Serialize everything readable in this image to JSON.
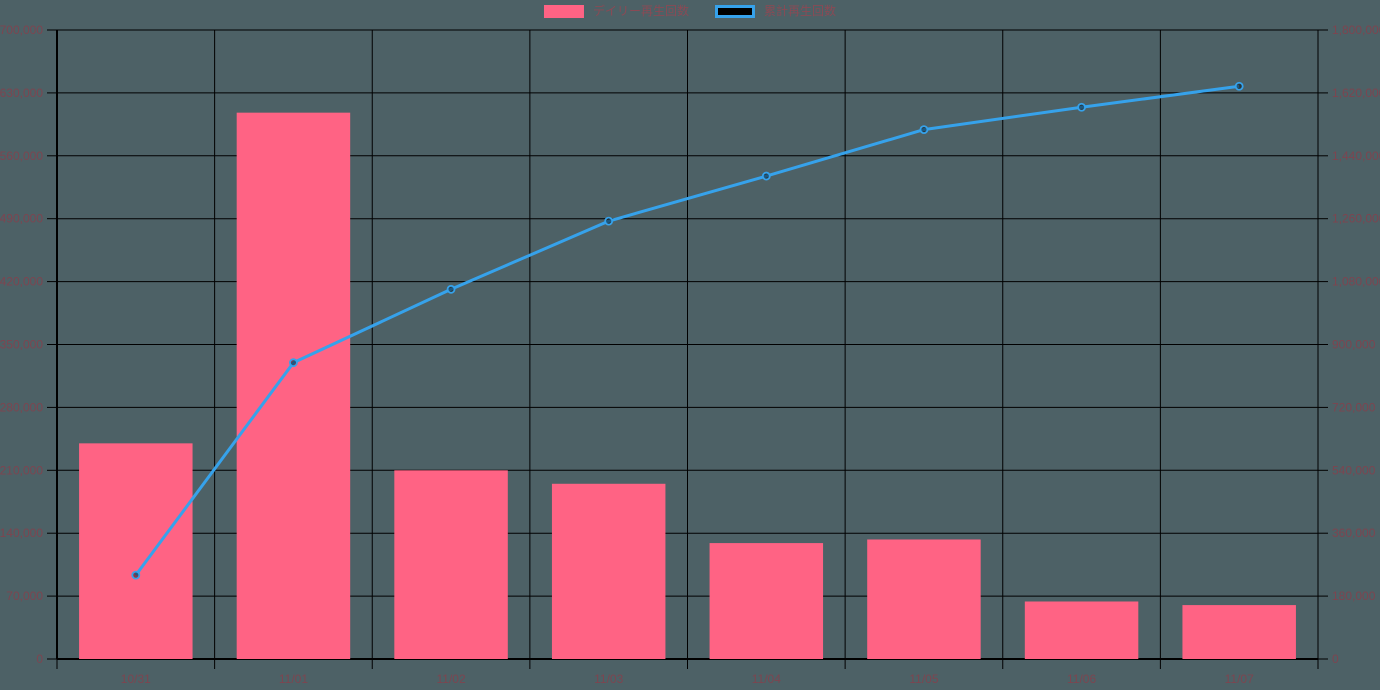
{
  "chart_data": {
    "type": "combo",
    "title": "",
    "categories": [
      "10/31",
      "11/01",
      "11/02",
      "11/03",
      "11/04",
      "11/05",
      "11/06",
      "11/07"
    ],
    "series": [
      {
        "name": "デイリー再生回数",
        "type": "bar",
        "axis": "left",
        "color": "#ff6384",
        "values": [
          240000,
          608000,
          210000,
          195000,
          129000,
          133000,
          64000,
          60000
        ]
      },
      {
        "name": "累計再生回数",
        "type": "line",
        "axis": "right",
        "color": "#36a2eb",
        "point_fill": "rgba(0,0,0,0.45)",
        "values": [
          240000,
          848000,
          1058000,
          1253000,
          1382000,
          1515000,
          1579000,
          1639000
        ]
      }
    ],
    "left_axis": {
      "min": 0,
      "max": 700000,
      "step": 70000,
      "tick_labels": [
        "0",
        "70,000",
        "140,000",
        "210,000",
        "280,000",
        "350,000",
        "420,000",
        "490,000",
        "560,000",
        "630,000",
        "700,000"
      ]
    },
    "right_axis": {
      "min": 0,
      "max": 1800000,
      "step": 180000,
      "tick_labels": [
        "0",
        "180,000",
        "360,000",
        "540,000",
        "720,000",
        "900,000",
        "1,080,000",
        "1,260,000",
        "1,440,000",
        "1,620,000",
        "1,800,000"
      ]
    },
    "grid": true,
    "legend_position": "top",
    "colors": {
      "background": "#4d6166",
      "gridline": "#000000",
      "axis_line": "#000000",
      "tick_label": "#7d4550",
      "legend_label": "#8a4a55"
    }
  }
}
